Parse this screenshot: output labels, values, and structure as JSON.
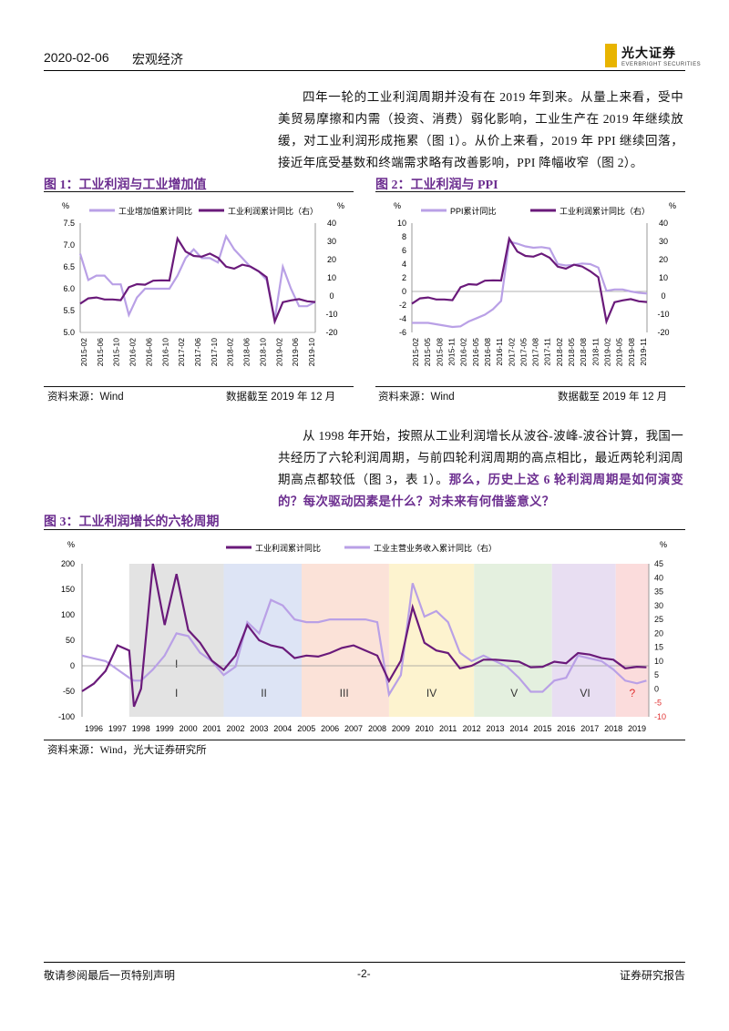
{
  "header": {
    "date": "2020-02-06",
    "category": "宏观经济",
    "logo_name": "光大证券",
    "logo_en": "EVERBRIGHT SECURITIES"
  },
  "para1": "四年一轮的工业利润周期并没有在 2019 年到来。从量上来看，受中美贸易摩擦和内需（投资、消费）弱化影响，工业生产在 2019 年继续放缓，对工业利润形成拖累（图 1）。从价上来看，2019 年 PPI 继续回落，接近年底受基数和终端需求略有改善影响，PPI 降幅收窄（图 2）。",
  "para2_plain": "从 1998 年开始，按照从工业利润增长从波谷-波峰-波谷计算，我国一共经历了六轮利润周期，与前四轮利润周期的高点相比，最近两轮利润周期高点都较低（图 3，表 1）。",
  "para2_em": "那么，历史上这 6 轮利润周期是如何演变的？每次驱动因素是什么？对未来有何借鉴意义？",
  "fig1": {
    "title": "图 1：工业利润与工业增加值",
    "source": "资料来源：Wind",
    "cutoff": "数据截至 2019 年 12 月",
    "left_unit": "%",
    "right_unit": "%",
    "legend": [
      "工业增加值累计同比",
      "工业利润累计同比（右）"
    ],
    "left_ticks": [
      "7.5",
      "7.0",
      "6.5",
      "6.0",
      "5.5",
      "5.0"
    ],
    "right_ticks": [
      "40",
      "30",
      "20",
      "10",
      "0",
      "-10",
      "-20"
    ],
    "x_ticks": [
      "2015-02",
      "2015-06",
      "2015-10",
      "2016-02",
      "2016-06",
      "2016-10",
      "2017-02",
      "2017-06",
      "2017-10",
      "2018-02",
      "2018-06",
      "2018-10",
      "2019-02",
      "2019-06",
      "2019-10"
    ]
  },
  "fig2": {
    "title": "图 2：工业利润与 PPI",
    "source": "资料来源：Wind",
    "cutoff": "数据截至 2019 年 12 月",
    "left_unit": "%",
    "right_unit": "%",
    "legend": [
      "PPI累计同比",
      "工业利润累计同比（右）"
    ],
    "left_ticks": [
      "10",
      "8",
      "6",
      "4",
      "2",
      "0",
      "-2",
      "-4",
      "-6"
    ],
    "right_ticks": [
      "40",
      "30",
      "20",
      "10",
      "0",
      "-10",
      "-20"
    ],
    "x_ticks": [
      "2015-02",
      "2015-05",
      "2015-08",
      "2015-11",
      "2016-02",
      "2016-05",
      "2016-08",
      "2016-11",
      "2017-02",
      "2017-05",
      "2017-08",
      "2017-11",
      "2018-02",
      "2018-05",
      "2018-08",
      "2018-11",
      "2019-02",
      "2019-05",
      "2019-08",
      "2019-11"
    ]
  },
  "fig3": {
    "title": "图 3：工业利润增长的六轮周期",
    "source": "资料来源：Wind，光大证券研究所",
    "left_unit": "%",
    "right_unit": "%",
    "legend": [
      "工业利润累计同比",
      "工业主营业务收入累计同比（右）"
    ],
    "left_ticks": [
      "200",
      "150",
      "100",
      "50",
      "0",
      "-50",
      "-100"
    ],
    "right_ticks": [
      "45",
      "40",
      "35",
      "30",
      "25",
      "20",
      "15",
      "10",
      "5",
      "0",
      "-5",
      "-10"
    ],
    "years": [
      "1996",
      "1997",
      "1998",
      "1999",
      "2000",
      "2001",
      "2002",
      "2003",
      "2004",
      "2005",
      "2006",
      "2007",
      "2008",
      "2009",
      "2010",
      "2011",
      "2012",
      "2013",
      "2014",
      "2015",
      "2016",
      "2017",
      "2018",
      "2019"
    ],
    "cycles": [
      "I",
      "I",
      "II",
      "III",
      "IV",
      "V",
      "VI",
      "?"
    ]
  },
  "chart_data": [
    {
      "type": "line",
      "title": "图 1：工业利润与工业增加值",
      "x": [
        "2015-02",
        "2015-04",
        "2015-06",
        "2015-08",
        "2015-10",
        "2015-12",
        "2016-02",
        "2016-04",
        "2016-06",
        "2016-08",
        "2016-10",
        "2016-12",
        "2017-02",
        "2017-04",
        "2017-06",
        "2017-08",
        "2017-10",
        "2017-12",
        "2018-02",
        "2018-04",
        "2018-06",
        "2018-08",
        "2018-10",
        "2018-12",
        "2019-02",
        "2019-04",
        "2019-06",
        "2019-08",
        "2019-10",
        "2019-12"
      ],
      "series": [
        {
          "name": "工业增加值累计同比",
          "axis": "left",
          "values": [
            6.8,
            6.2,
            6.3,
            6.3,
            6.1,
            6.1,
            5.4,
            5.8,
            6.0,
            6.0,
            6.0,
            6.0,
            6.3,
            6.7,
            6.9,
            6.7,
            6.7,
            6.6,
            7.2,
            6.9,
            6.7,
            6.5,
            6.4,
            6.2,
            5.3,
            6.5,
            6.0,
            5.6,
            5.6,
            5.7
          ]
        },
        {
          "name": "工业利润累计同比（右）",
          "axis": "right",
          "values": [
            -4.2,
            -1.3,
            -0.8,
            -1.9,
            -1.9,
            -2.3,
            4.8,
            6.5,
            6.2,
            8.4,
            8.6,
            8.5,
            31.5,
            24.4,
            22.0,
            21.6,
            23.3,
            21.0,
            16.1,
            15.0,
            17.2,
            16.2,
            13.6,
            10.3,
            -14.0,
            -3.4,
            -2.4,
            -1.7,
            -2.9,
            -3.3
          ]
        }
      ],
      "ylim_left": [
        5.0,
        7.5
      ],
      "ylim_right": [
        -20,
        40
      ]
    },
    {
      "type": "line",
      "title": "图 2：工业利润与 PPI",
      "x": [
        "2015-02",
        "2015-04",
        "2015-06",
        "2015-08",
        "2015-10",
        "2015-12",
        "2016-02",
        "2016-04",
        "2016-06",
        "2016-08",
        "2016-10",
        "2016-12",
        "2017-02",
        "2017-04",
        "2017-06",
        "2017-08",
        "2017-10",
        "2017-12",
        "2018-02",
        "2018-04",
        "2018-06",
        "2018-08",
        "2018-10",
        "2018-12",
        "2019-02",
        "2019-04",
        "2019-06",
        "2019-08",
        "2019-10",
        "2019-12"
      ],
      "series": [
        {
          "name": "PPI累计同比",
          "axis": "left",
          "values": [
            -4.6,
            -4.6,
            -4.6,
            -4.8,
            -5.0,
            -5.2,
            -5.1,
            -4.4,
            -3.9,
            -3.4,
            -2.6,
            -1.4,
            7.3,
            7.0,
            6.6,
            6.4,
            6.5,
            6.3,
            4.0,
            3.8,
            3.9,
            4.1,
            4.0,
            3.5,
            0.1,
            0.3,
            0.3,
            0.0,
            -0.2,
            -0.3
          ]
        },
        {
          "name": "工业利润累计同比（右）",
          "axis": "right",
          "values": [
            -4.2,
            -1.3,
            -0.8,
            -1.9,
            -1.9,
            -2.3,
            4.8,
            6.5,
            6.2,
            8.4,
            8.6,
            8.5,
            31.5,
            24.4,
            22.0,
            21.6,
            23.3,
            21.0,
            16.1,
            15.0,
            17.2,
            16.2,
            13.6,
            10.3,
            -14.0,
            -3.4,
            -2.4,
            -1.7,
            -2.9,
            -3.3
          ]
        }
      ],
      "ylim_left": [
        -6,
        10
      ],
      "ylim_right": [
        -20,
        40
      ]
    },
    {
      "type": "line",
      "title": "图 3：工业利润增长的六轮周期",
      "x": [
        1996,
        1996.5,
        1997,
        1997.5,
        1998,
        1998.2,
        1998.5,
        1999,
        1999.5,
        2000,
        2000.5,
        2001,
        2001.5,
        2002,
        2002.5,
        2003,
        2003.5,
        2004,
        2004.5,
        2005,
        2005.5,
        2006,
        2006.5,
        2007,
        2007.5,
        2008,
        2008.5,
        2009,
        2009.5,
        2010,
        2010.5,
        2011,
        2011.5,
        2012,
        2012.5,
        2013,
        2013.5,
        2014,
        2014.5,
        2015,
        2015.5,
        2016,
        2016.5,
        2017,
        2017.5,
        2018,
        2018.5,
        2019,
        2019.5,
        2019.9
      ],
      "series": [
        {
          "name": "工业利润累计同比",
          "axis": "left",
          "values": [
            -50,
            -35,
            -10,
            40,
            30,
            -80,
            -45,
            200,
            80,
            180,
            70,
            45,
            10,
            -8,
            20,
            80,
            50,
            40,
            35,
            15,
            20,
            18,
            25,
            35,
            40,
            30,
            20,
            -30,
            10,
            115,
            45,
            30,
            25,
            -5,
            0,
            12,
            12,
            10,
            8,
            -3,
            -2,
            8,
            5,
            25,
            22,
            15,
            12,
            -5,
            -2,
            -3
          ]
        },
        {
          "name": "工业主营业务收入累计同比（右）",
          "axis": "right",
          "values": [
            12,
            11,
            10,
            7,
            4,
            3,
            3,
            7,
            12,
            20,
            19,
            13,
            10,
            5,
            8,
            24,
            20,
            32,
            30,
            25,
            24,
            24,
            25,
            25,
            25,
            25,
            24,
            -2,
            5,
            38,
            26,
            28,
            24,
            13,
            10,
            12,
            10,
            8,
            4,
            -1,
            -1,
            3,
            4,
            12,
            11,
            10,
            7,
            3,
            2,
            3
          ]
        }
      ],
      "ylim_left": [
        -100,
        200
      ],
      "ylim_right": [
        -10,
        45
      ],
      "cycles": [
        "I",
        "II",
        "III",
        "IV",
        "V",
        "VI",
        "?"
      ]
    }
  ],
  "colors": {
    "light_purple": "#b9a0e6",
    "dark_purple": "#6a1a7a",
    "title_purple": "#6b2d8f",
    "red_tick": "#e03030"
  },
  "footer": {
    "left": "敬请参阅最后一页特别声明",
    "page": "-2-",
    "right": "证券研究报告"
  }
}
